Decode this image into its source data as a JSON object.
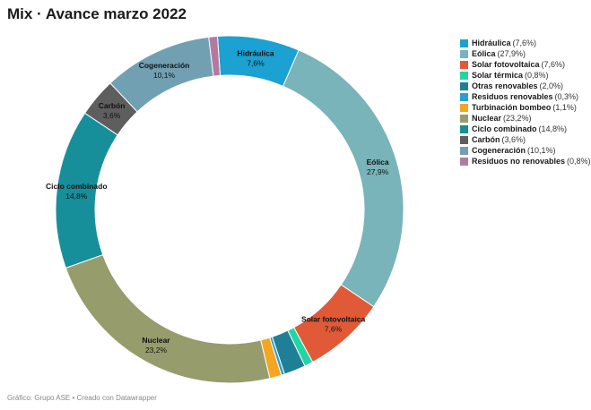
{
  "title": "Mix · Avance marzo 2022",
  "footer": "Gráfico: Grupo ASE • Creado con Datawrapper",
  "chart_data": {
    "type": "pie",
    "title": "Mix · Avance marzo 2022",
    "unit": "%",
    "slices": [
      {
        "name": "Hidráulica",
        "value": 7.6,
        "label": "7,6%",
        "color": "#1ba1d2",
        "show_label": true
      },
      {
        "name": "Eólica",
        "value": 27.9,
        "label": "27,9%",
        "color": "#78b4b9",
        "show_label": true
      },
      {
        "name": "Solar fotovoltaica",
        "value": 7.6,
        "label": "7,6%",
        "color": "#e05a38",
        "show_label": true
      },
      {
        "name": "Solar térmica",
        "value": 0.8,
        "label": "0,8%",
        "color": "#20d6a4",
        "show_label": false
      },
      {
        "name": "Otras renovables",
        "value": 2.0,
        "label": "2,0%",
        "color": "#1f7f97",
        "show_label": false
      },
      {
        "name": "Residuos renovables",
        "value": 0.3,
        "label": "0,3%",
        "color": "#2a9fd4",
        "show_label": false
      },
      {
        "name": "Turbinación bombeo",
        "value": 1.1,
        "label": "1,1%",
        "color": "#f4a623",
        "show_label": false
      },
      {
        "name": "Nuclear",
        "value": 23.2,
        "label": "23,2%",
        "color": "#969c6c",
        "show_label": true
      },
      {
        "name": "Ciclo combinado",
        "value": 14.8,
        "label": "14,8%",
        "color": "#168f9b",
        "show_label": true
      },
      {
        "name": "Carbón",
        "value": 3.6,
        "label": "3,6%",
        "color": "#5e5e5e",
        "show_label": true
      },
      {
        "name": "Cogeneración",
        "value": 10.1,
        "label": "10,1%",
        "color": "#71a0b2",
        "show_label": true
      },
      {
        "name": "Residuos no renovables",
        "value": 0.8,
        "label": "0,8%",
        "color": "#b27aa1",
        "show_label": false
      }
    ]
  }
}
